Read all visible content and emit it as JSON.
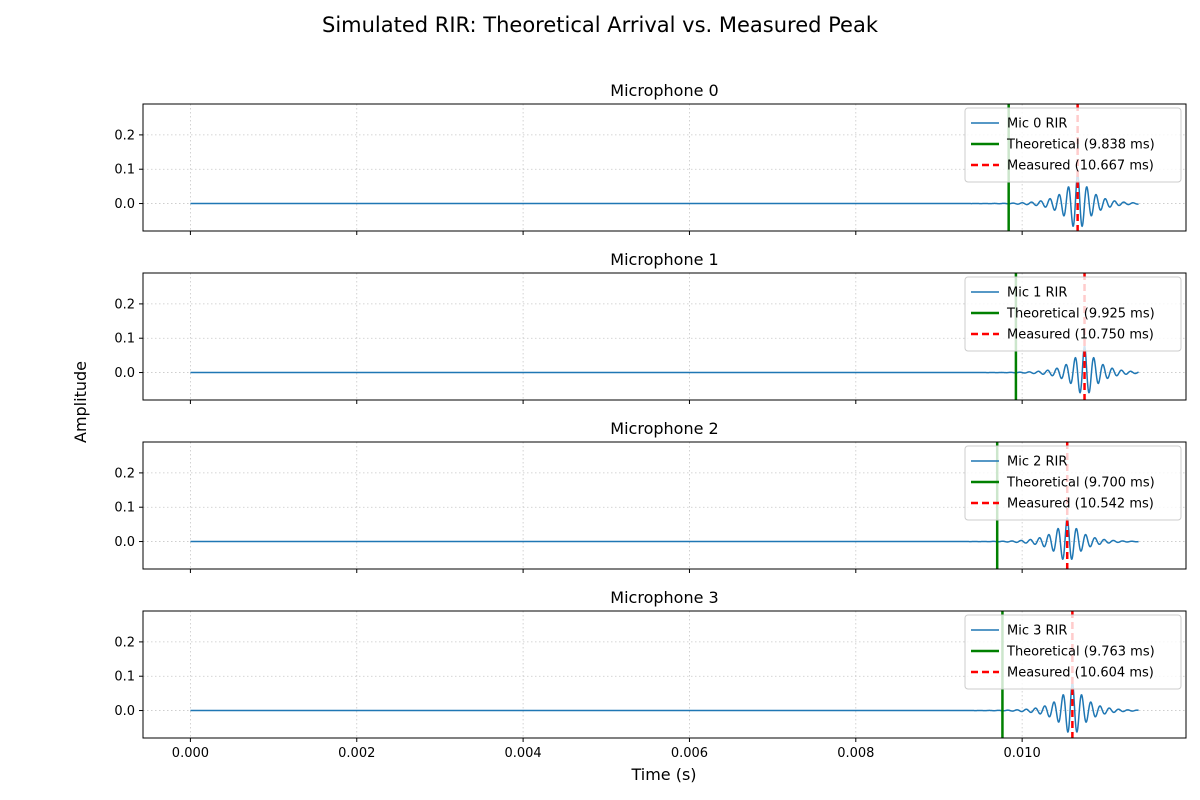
{
  "title": "Simulated RIR: Theoretical Arrival vs. Measured Peak",
  "chart_data": {
    "type": "line",
    "title": "Simulated RIR: Theoretical Arrival vs. Measured Peak",
    "xlabel": "Time (s)",
    "ylabel": "Amplitude",
    "xlim": [
      -0.00057,
      0.01197
    ],
    "ylim": [
      -0.08,
      0.29
    ],
    "xticks": [
      0.0,
      0.002,
      0.004,
      0.006,
      0.008,
      0.01
    ],
    "xtick_labels": [
      "0.000",
      "0.002",
      "0.004",
      "0.006",
      "0.008",
      "0.010"
    ],
    "yticks": [
      0.0,
      0.1,
      0.2
    ],
    "ytick_labels": [
      "0.0",
      "0.1",
      "0.2"
    ],
    "grid": true,
    "shared_x": true,
    "legend_position": "upper right",
    "signal_duration_s": 0.0114,
    "colors": {
      "signal": "#1f77b4",
      "theoretical": "#008000",
      "measured": "#ff0000"
    },
    "panels": [
      {
        "title": "Microphone 0",
        "series_label": "Mic 0 RIR",
        "theoretical_s": 0.009838,
        "measured_s": 0.010667,
        "peak_amplitude": 0.09,
        "legend_labels": [
          "Mic 0 RIR",
          "Theoretical (9.838 ms)",
          "Measured (10.667 ms)"
        ]
      },
      {
        "title": "Microphone 1",
        "series_label": "Mic 1 RIR",
        "theoretical_s": 0.009925,
        "measured_s": 0.01075,
        "peak_amplitude": 0.08,
        "legend_labels": [
          "Mic 1 RIR",
          "Theoretical (9.925 ms)",
          "Measured (10.750 ms)"
        ]
      },
      {
        "title": "Microphone 2",
        "series_label": "Mic 2 RIR",
        "theoretical_s": 0.0097,
        "measured_s": 0.010542,
        "peak_amplitude": 0.07,
        "legend_labels": [
          "Mic 2 RIR",
          "Theoretical (9.700 ms)",
          "Measured (10.542 ms)"
        ]
      },
      {
        "title": "Microphone 3",
        "series_label": "Mic 3 RIR",
        "theoretical_s": 0.009763,
        "measured_s": 0.010604,
        "peak_amplitude": 0.085,
        "legend_labels": [
          "Mic 3 RIR",
          "Theoretical (9.763 ms)",
          "Measured (10.604 ms)"
        ]
      }
    ]
  }
}
